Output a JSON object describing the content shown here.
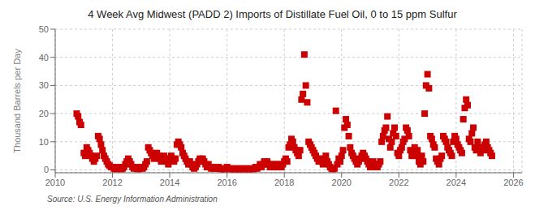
{
  "chart_data": {
    "type": "scatter",
    "title": "4 Week Avg Midwest (PADD 2) Imports of Distillate Fuel Oil, 0 to 15 ppm Sulfur",
    "ylabel": "Thousand Barrels per Day",
    "annotation": "Source: U.S. Energy Information Administration",
    "color": "#cc0000",
    "marker": "square",
    "grid": true,
    "xlim": [
      2010.0,
      2026.3
    ],
    "ylim": [
      -1,
      50
    ],
    "xticks": [
      2010,
      2012,
      2014,
      2016,
      2018,
      2020,
      2022,
      2024,
      2026
    ],
    "yticks": [
      0,
      10,
      20,
      30,
      40,
      50
    ],
    "x": [
      2010.75,
      2010.8,
      2010.85,
      2010.9,
      2011.0,
      2011.05,
      2011.1,
      2011.15,
      2011.2,
      2011.25,
      2011.3,
      2011.35,
      2011.4,
      2011.45,
      2011.5,
      2011.55,
      2011.6,
      2011.65,
      2011.7,
      2011.75,
      2011.8,
      2011.85,
      2011.9,
      2011.95,
      2012.0,
      2012.05,
      2012.1,
      2012.15,
      2012.2,
      2012.25,
      2012.3,
      2012.35,
      2012.4,
      2012.45,
      2012.5,
      2012.55,
      2012.6,
      2012.65,
      2012.7,
      2012.75,
      2012.8,
      2012.85,
      2012.9,
      2012.95,
      2013.0,
      2013.05,
      2013.1,
      2013.15,
      2013.2,
      2013.25,
      2013.3,
      2013.35,
      2013.4,
      2013.45,
      2013.5,
      2013.55,
      2013.6,
      2013.65,
      2013.7,
      2013.75,
      2013.8,
      2013.85,
      2013.9,
      2013.95,
      2014.0,
      2014.05,
      2014.1,
      2014.15,
      2014.2,
      2014.25,
      2014.3,
      2014.35,
      2014.4,
      2014.45,
      2014.5,
      2014.55,
      2014.6,
      2014.65,
      2014.7,
      2014.75,
      2014.8,
      2014.85,
      2014.9,
      2014.95,
      2015.0,
      2015.05,
      2015.1,
      2015.15,
      2015.2,
      2015.25,
      2015.3,
      2015.35,
      2015.4,
      2015.45,
      2015.5,
      2015.55,
      2015.6,
      2015.65,
      2015.7,
      2015.75,
      2015.8,
      2015.85,
      2015.9,
      2015.95,
      2016.0,
      2016.05,
      2016.1,
      2016.15,
      2016.2,
      2016.25,
      2016.3,
      2016.35,
      2016.4,
      2016.45,
      2016.5,
      2016.55,
      2016.6,
      2016.65,
      2016.7,
      2016.75,
      2016.8,
      2016.85,
      2016.9,
      2016.95,
      2017.0,
      2017.05,
      2017.1,
      2017.15,
      2017.2,
      2017.25,
      2017.3,
      2017.35,
      2017.4,
      2017.45,
      2017.5,
      2017.55,
      2017.6,
      2017.65,
      2017.7,
      2017.75,
      2017.8,
      2017.85,
      2017.9,
      2017.95,
      2018.0,
      2018.05,
      2018.1,
      2018.15,
      2018.2,
      2018.25,
      2018.3,
      2018.35,
      2018.4,
      2018.45,
      2018.5,
      2018.55,
      2018.6,
      2018.65,
      2018.7,
      2018.75,
      2018.8,
      2018.85,
      2018.9,
      2018.95,
      2019.0,
      2019.05,
      2019.1,
      2019.15,
      2019.2,
      2019.25,
      2019.3,
      2019.35,
      2019.4,
      2019.45,
      2019.5,
      2019.55,
      2019.6,
      2019.65,
      2019.7,
      2019.75,
      2019.8,
      2019.85,
      2019.9,
      2019.95,
      2020.0,
      2020.05,
      2020.1,
      2020.15,
      2020.2,
      2020.25,
      2020.3,
      2020.35,
      2020.4,
      2020.45,
      2020.5,
      2020.55,
      2020.6,
      2020.65,
      2020.7,
      2020.75,
      2020.8,
      2020.85,
      2020.9,
      2020.95,
      2021.0,
      2021.05,
      2021.1,
      2021.15,
      2021.2,
      2021.25,
      2021.3,
      2021.35,
      2021.4,
      2021.45,
      2021.5,
      2021.55,
      2021.6,
      2021.65,
      2021.7,
      2021.75,
      2021.8,
      2021.85,
      2021.9,
      2021.95,
      2022.0,
      2022.05,
      2022.1,
      2022.15,
      2022.2,
      2022.25,
      2022.3,
      2022.35,
      2022.4,
      2022.45,
      2022.5,
      2022.55,
      2022.6,
      2022.65,
      2022.7,
      2022.75,
      2022.8,
      2022.85,
      2022.9,
      2022.95,
      2023.0,
      2023.05,
      2023.1,
      2023.15,
      2023.2,
      2023.25,
      2023.3,
      2023.35,
      2023.4,
      2023.45,
      2023.5,
      2023.55,
      2023.6,
      2023.65,
      2023.7,
      2023.75,
      2023.8,
      2023.85,
      2023.9,
      2023.95,
      2024.0,
      2024.05,
      2024.1,
      2024.15,
      2024.2,
      2024.25,
      2024.3,
      2024.35,
      2024.4,
      2024.45,
      2024.5,
      2024.55,
      2024.6,
      2024.65,
      2024.7,
      2024.75,
      2024.8,
      2024.85,
      2024.9,
      2024.95,
      2025.0,
      2025.05,
      2025.1,
      2025.15,
      2025.2,
      2025.25
    ],
    "values": [
      20.0,
      19.0,
      17.0,
      16.0,
      6.0,
      5.0,
      8.0,
      7.0,
      6.0,
      5.0,
      4.0,
      3.0,
      4.0,
      5.0,
      12.0,
      11.0,
      9.0,
      7.0,
      5.0,
      4.0,
      3.0,
      2.0,
      1.5,
      1.0,
      1.0,
      0.5,
      0.3,
      0.5,
      1.0,
      0.5,
      0.3,
      0.5,
      1.0,
      2.0,
      3.0,
      4.0,
      3.0,
      2.0,
      1.0,
      0.5,
      1.0,
      0.5,
      0.3,
      0.5,
      1.0,
      0.5,
      1.0,
      2.0,
      3.0,
      8.0,
      7.0,
      6.0,
      5.0,
      4.0,
      5.0,
      6.0,
      5.0,
      4.0,
      3.0,
      4.0,
      5.0,
      4.0,
      3.0,
      2.0,
      4.0,
      5.0,
      4.0,
      3.0,
      4.0,
      9.0,
      10.0,
      9.0,
      8.0,
      6.0,
      5.0,
      4.0,
      3.0,
      2.0,
      3.0,
      2.0,
      1.0,
      0.5,
      1.0,
      2.0,
      3.0,
      4.0,
      3.0,
      4.0,
      3.0,
      2.0,
      1.0,
      2.0,
      1.0,
      0.5,
      1.0,
      0.5,
      1.0,
      0.5,
      1.0,
      0.5,
      0.3,
      0.5,
      0.3,
      0.5,
      1.0,
      0.5,
      0.3,
      0.5,
      0.3,
      0.5,
      0.3,
      0.5,
      0.3,
      0.5,
      0.3,
      0.5,
      0.3,
      0.5,
      0.3,
      0.5,
      0.3,
      0.5,
      0.3,
      0.5,
      1.0,
      0.5,
      1.0,
      2.0,
      1.0,
      2.0,
      3.0,
      2.0,
      3.0,
      2.0,
      1.0,
      2.0,
      1.0,
      2.0,
      1.0,
      2.0,
      1.0,
      2.0,
      1.0,
      2.0,
      3.0,
      4.0,
      3.0,
      8.0,
      9.0,
      11.0,
      10.0,
      8.0,
      7.0,
      6.0,
      5.0,
      7.0,
      25.0,
      27.0,
      41.0,
      30.0,
      24.0,
      10.0,
      9.0,
      8.0,
      7.0,
      6.0,
      5.0,
      4.0,
      3.0,
      4.0,
      3.0,
      2.0,
      4.0,
      5.0,
      3.0,
      2.0,
      1.0,
      0.5,
      0.3,
      0.5,
      21.0,
      2.0,
      4.0,
      3.0,
      5.0,
      7.0,
      15.0,
      18.0,
      16.0,
      12.0,
      8.0,
      6.0,
      5.0,
      4.0,
      3.0,
      2.0,
      3.0,
      4.0,
      5.0,
      6.0,
      5.0,
      4.0,
      3.0,
      2.0,
      1.0,
      2.0,
      3.0,
      1.0,
      2.0,
      1.0,
      2.0,
      3.0,
      10.0,
      12.0,
      14.0,
      15.0,
      19.0,
      11.0,
      8.0,
      10.0,
      13.0,
      15.0,
      12.0,
      6.0,
      5.0,
      7.0,
      8.0,
      10.0,
      11.0,
      15.0,
      14.0,
      12.0,
      7.0,
      5.0,
      6.0,
      8.0,
      5.0,
      7.0,
      3.0,
      2.0,
      5.0,
      3.0,
      20.0,
      30.0,
      34.0,
      29.0,
      12.0,
      11.0,
      9.0,
      8.0,
      4.0,
      3.0,
      2.0,
      4.0,
      5.0,
      12.0,
      11.0,
      10.0,
      8.0,
      7.0,
      6.0,
      5.0,
      10.0,
      12.0,
      11.0,
      9.0,
      8.0,
      7.0,
      6.0,
      18.0,
      22.0,
      25.0,
      23.0,
      11.0,
      10.0,
      13.0,
      15.0,
      8.0,
      7.0,
      10.0,
      8.0,
      6.0,
      8.0,
      7.0,
      9.0,
      10.0,
      8.0,
      7.0,
      6.0,
      5.0
    ]
  }
}
